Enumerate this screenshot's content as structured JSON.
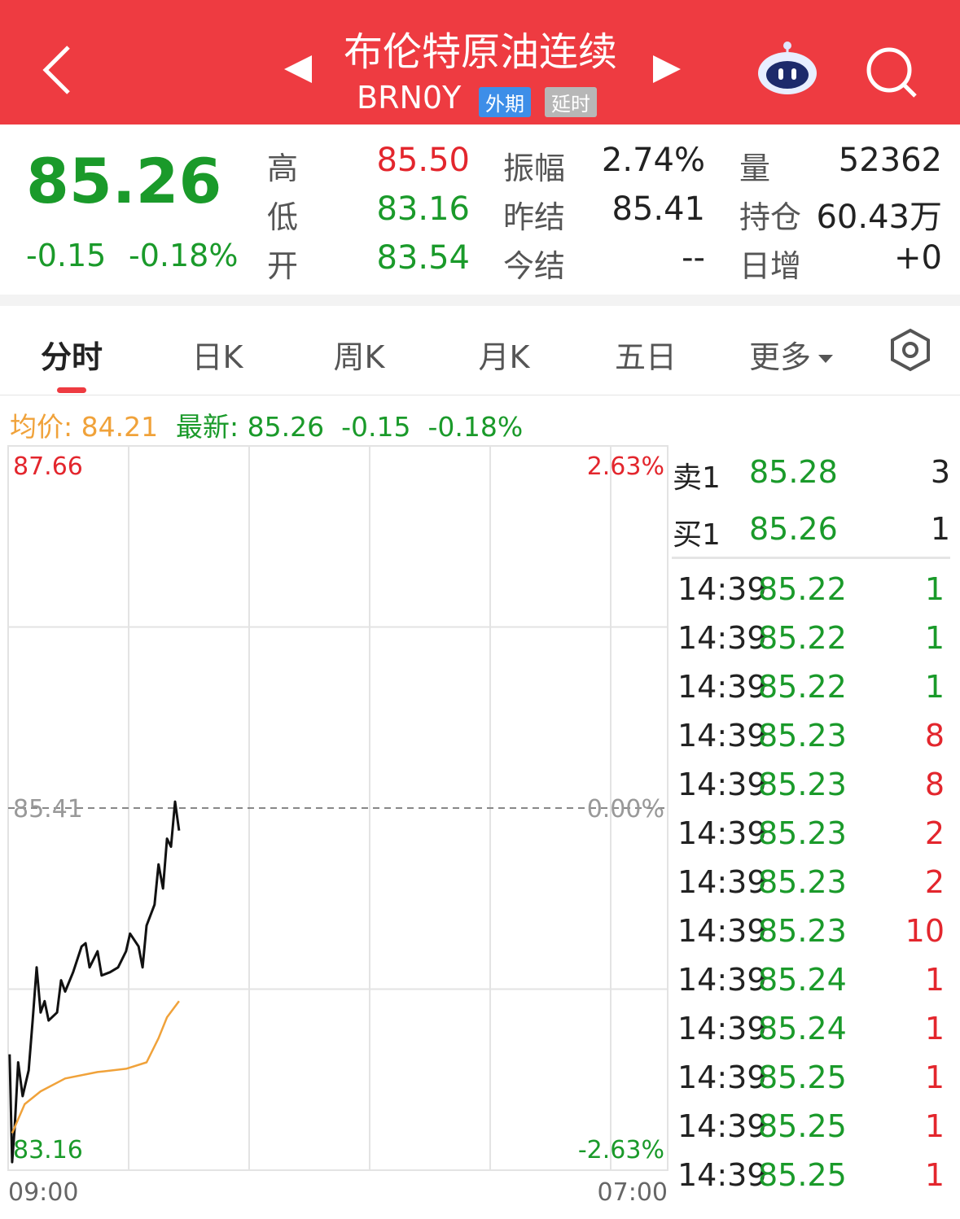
{
  "header": {
    "title": "布伦特原油连续",
    "code": "BRN0Y",
    "tags": [
      "外期",
      "延时"
    ]
  },
  "quote": {
    "price": "85.26",
    "change": "-0.15",
    "change_pct": "-0.18%",
    "stats": [
      [
        {
          "label": "高",
          "value": "85.50"
        },
        {
          "label": "振幅",
          "value": "2.74%"
        },
        {
          "label": "量",
          "value": "52362"
        }
      ],
      [
        {
          "label": "低",
          "value": "83.16"
        },
        {
          "label": "昨结",
          "value": "85.41"
        },
        {
          "label": "持仓",
          "value": "60.43万"
        }
      ],
      [
        {
          "label": "开",
          "value": "83.54"
        },
        {
          "label": "今结",
          "value": "--"
        },
        {
          "label": "日增",
          "value": "+0"
        }
      ]
    ]
  },
  "tabs": [
    "分时",
    "日K",
    "周K",
    "月K",
    "五日",
    "更多"
  ],
  "info": {
    "avg_label": "均价:",
    "avg_value": "84.21",
    "last_label": "最新:",
    "last_value": "85.26",
    "change": "-0.15",
    "change_pct": "-0.18%"
  },
  "chart_data": {
    "type": "line",
    "xlim": [
      0,
      1320
    ],
    "xticks": [
      {
        "value": 0,
        "label": "09:00"
      },
      {
        "value": 1320,
        "label": "07:00"
      }
    ],
    "ylim": [
      83.16,
      87.66
    ],
    "yticks": [
      87.66,
      85.41,
      83.16
    ],
    "y2lim": [
      -2.63,
      2.63
    ],
    "y2ticks": [
      {
        "value": 2.63,
        "label": "2.63%"
      },
      {
        "value": 0,
        "label": "0.00%"
      },
      {
        "value": -2.63,
        "label": "-2.63%"
      }
    ],
    "series": [
      {
        "name": "最新",
        "color": "#111111",
        "x": [
          3,
          8,
          13,
          20,
          29,
          41,
          49,
          57,
          65,
          73,
          81,
          98,
          106,
          114,
          130,
          147,
          155,
          163,
          179,
          187,
          204,
          220,
          236,
          244,
          261,
          269,
          277,
          293,
          301,
          310,
          318,
          326,
          334,
          342
        ],
        "values": [
          83.88,
          83.21,
          83.42,
          83.83,
          83.62,
          83.78,
          84.09,
          84.42,
          84.14,
          84.21,
          84.09,
          84.14,
          84.34,
          84.27,
          84.39,
          84.55,
          84.57,
          84.42,
          84.52,
          84.37,
          84.39,
          84.42,
          84.52,
          84.63,
          84.55,
          84.42,
          84.68,
          84.81,
          85.06,
          84.91,
          85.22,
          85.17,
          85.45,
          85.27
        ]
      },
      {
        "name": "均价",
        "color": "#f0a23a",
        "x": [
          8,
          33,
          65,
          114,
          179,
          236,
          277,
          301,
          318,
          342
        ],
        "values": [
          83.39,
          83.57,
          83.65,
          83.73,
          83.77,
          83.79,
          83.83,
          83.98,
          84.11,
          84.21
        ]
      }
    ]
  },
  "orderbook": [
    {
      "side": "卖1",
      "price": "85.28",
      "volume": "3"
    },
    {
      "side": "买1",
      "price": "85.26",
      "volume": "1"
    }
  ],
  "trades": [
    {
      "time": "14:39",
      "price": "85.22",
      "volume": "1",
      "color": "#1a9a2a"
    },
    {
      "time": "14:39",
      "price": "85.22",
      "volume": "1",
      "color": "#1a9a2a"
    },
    {
      "time": "14:39",
      "price": "85.22",
      "volume": "1",
      "color": "#1a9a2a"
    },
    {
      "time": "14:39",
      "price": "85.23",
      "volume": "8",
      "color": "#e3262d"
    },
    {
      "time": "14:39",
      "price": "85.23",
      "volume": "8",
      "color": "#e3262d"
    },
    {
      "time": "14:39",
      "price": "85.23",
      "volume": "2",
      "color": "#e3262d"
    },
    {
      "time": "14:39",
      "price": "85.23",
      "volume": "2",
      "color": "#e3262d"
    },
    {
      "time": "14:39",
      "price": "85.23",
      "volume": "10",
      "color": "#e3262d"
    },
    {
      "time": "14:39",
      "price": "85.24",
      "volume": "1",
      "color": "#e3262d"
    },
    {
      "time": "14:39",
      "price": "85.24",
      "volume": "1",
      "color": "#e3262d"
    },
    {
      "time": "14:39",
      "price": "85.25",
      "volume": "1",
      "color": "#e3262d"
    },
    {
      "time": "14:39",
      "price": "85.25",
      "volume": "1",
      "color": "#e3262d"
    },
    {
      "time": "14:39",
      "price": "85.25",
      "volume": "1",
      "color": "#e3262d"
    }
  ]
}
